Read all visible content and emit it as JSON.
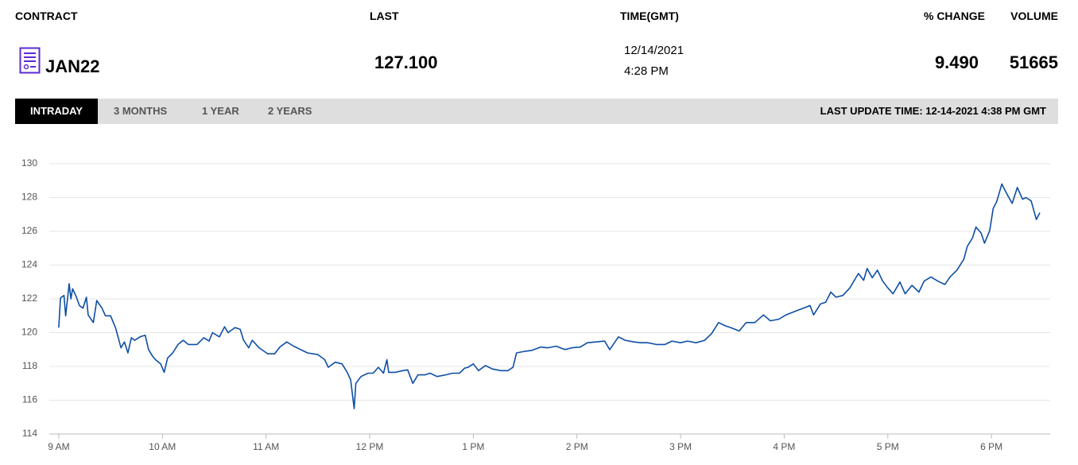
{
  "header": {
    "labels": {
      "contract": "CONTRACT",
      "last": "LAST",
      "time": "TIME(GMT)",
      "change": "% CHANGE",
      "volume": "VOLUME"
    },
    "contract": "JAN22",
    "last": "127.100",
    "date": "12/14/2021",
    "time": "4:28 PM",
    "change": "9.490",
    "volume": "51665"
  },
  "tabs": [
    "INTRADAY",
    "3 MONTHS",
    "1 YEAR",
    "2 YEARS"
  ],
  "last_update": "LAST UPDATE TIME: 12-14-2021 4:38 PM GMT",
  "chart_data": {
    "type": "line",
    "color": "#0d4ea6",
    "grid": true,
    "xlim": [
      534.5,
      1114
    ],
    "xticks": [
      {
        "value": 540,
        "label": "9 AM"
      },
      {
        "value": 600,
        "label": "10 AM"
      },
      {
        "value": 660,
        "label": "11 AM"
      },
      {
        "value": 720,
        "label": "12 PM"
      },
      {
        "value": 780,
        "label": "1 PM"
      },
      {
        "value": 840,
        "label": "2 PM"
      },
      {
        "value": 900,
        "label": "3 PM"
      },
      {
        "value": 960,
        "label": "4 PM"
      },
      {
        "value": 1020,
        "label": "5 PM"
      },
      {
        "value": 1080,
        "label": "6 PM"
      }
    ],
    "ylim": [
      114,
      130
    ],
    "yticks": [
      114,
      116,
      118,
      120,
      122,
      124,
      126,
      128,
      130
    ],
    "x": [
      540,
      541,
      543,
      544,
      546,
      547,
      548,
      550,
      552,
      554,
      556,
      557,
      560,
      562,
      565,
      567,
      570,
      573,
      576,
      578,
      580,
      582,
      584,
      587,
      590,
      592,
      594,
      596,
      599,
      601,
      603,
      606,
      609,
      612,
      615,
      620,
      624,
      627,
      629,
      633,
      636,
      638,
      642,
      645,
      647,
      650,
      652,
      656,
      661,
      665,
      668,
      672,
      676,
      680,
      684,
      690,
      694,
      696,
      700,
      704,
      707,
      709,
      711,
      712,
      715,
      719,
      722,
      725,
      728,
      730,
      731,
      735,
      739,
      742,
      745,
      748,
      752,
      755,
      759,
      764,
      768,
      772,
      775,
      777,
      780,
      783,
      787,
      791,
      796,
      800,
      803,
      805,
      810,
      814,
      819,
      823,
      828,
      833,
      837,
      842,
      846,
      851,
      856,
      859,
      864,
      868,
      873,
      877,
      881,
      886,
      891,
      895,
      900,
      904,
      909,
      914,
      918,
      922,
      926,
      929,
      934,
      938,
      943,
      948,
      952,
      957,
      961,
      966,
      971,
      975,
      977,
      981,
      984,
      987,
      990,
      994,
      998,
      1003,
      1006,
      1008,
      1011,
      1014,
      1017,
      1020,
      1023,
      1027,
      1030,
      1034,
      1038,
      1041,
      1045,
      1049,
      1053,
      1056,
      1060,
      1064,
      1066,
      1069,
      1071,
      1074,
      1076,
      1079,
      1081,
      1083,
      1086,
      1087,
      1089,
      1092,
      1095,
      1098,
      1100,
      1103,
      1106,
      1108
    ],
    "values": [
      120.3,
      122.05,
      122.2,
      121.0,
      122.9,
      122.0,
      122.6,
      122.15,
      121.6,
      121.45,
      122.1,
      121.05,
      120.6,
      121.9,
      121.45,
      121.0,
      121.0,
      120.25,
      119.1,
      119.45,
      118.8,
      119.7,
      119.55,
      119.75,
      119.85,
      119.0,
      118.65,
      118.4,
      118.15,
      117.65,
      118.5,
      118.8,
      119.3,
      119.55,
      119.3,
      119.3,
      119.7,
      119.5,
      120.0,
      119.75,
      120.35,
      120.0,
      120.3,
      120.2,
      119.55,
      119.1,
      119.55,
      119.1,
      118.75,
      118.75,
      119.15,
      119.45,
      119.2,
      119.0,
      118.8,
      118.7,
      118.4,
      117.95,
      118.25,
      118.15,
      117.65,
      117.2,
      115.5,
      117.0,
      117.4,
      117.6,
      117.6,
      117.95,
      117.6,
      118.4,
      117.65,
      117.65,
      117.75,
      117.8,
      117.0,
      117.5,
      117.5,
      117.6,
      117.4,
      117.5,
      117.6,
      117.6,
      117.9,
      117.95,
      118.15,
      117.75,
      118.05,
      117.85,
      117.75,
      117.75,
      117.95,
      118.8,
      118.9,
      118.95,
      119.15,
      119.1,
      119.2,
      119.0,
      119.1,
      119.15,
      119.4,
      119.45,
      119.5,
      119.0,
      119.75,
      119.55,
      119.45,
      119.4,
      119.4,
      119.3,
      119.3,
      119.5,
      119.4,
      119.5,
      119.4,
      119.55,
      119.95,
      120.6,
      120.4,
      120.3,
      120.1,
      120.6,
      120.6,
      121.05,
      120.7,
      120.8,
      121.05,
      121.25,
      121.45,
      121.6,
      121.05,
      121.7,
      121.8,
      122.4,
      122.1,
      122.2,
      122.65,
      123.5,
      123.1,
      123.8,
      123.25,
      123.7,
      123.05,
      122.65,
      122.3,
      123.0,
      122.3,
      122.8,
      122.4,
      123.05,
      123.3,
      123.05,
      122.85,
      123.3,
      123.7,
      124.35,
      125.1,
      125.6,
      126.25,
      125.9,
      125.3,
      126.05,
      127.35,
      127.75,
      128.8,
      128.6,
      128.2,
      127.65,
      128.6,
      127.9,
      128.0,
      127.8,
      126.7,
      127.1
    ]
  }
}
